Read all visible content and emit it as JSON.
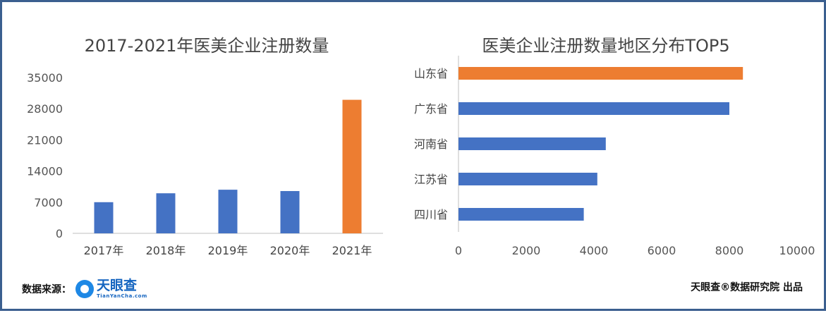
{
  "footer": {
    "source_label": "数据来源：",
    "logo_name": "天眼查",
    "logo_sub": "TianYanCha.com",
    "credit": "天眼查®数据研究院 出品"
  },
  "chart_data": [
    {
      "type": "bar",
      "title": "2017-2021年医美企业注册数量",
      "categories": [
        "2017年",
        "2018年",
        "2019年",
        "2020年",
        "2021年"
      ],
      "values": [
        7000,
        9000,
        9800,
        9500,
        30000
      ],
      "colors": [
        "#4472c4",
        "#4472c4",
        "#4472c4",
        "#4472c4",
        "#ed7d31"
      ],
      "ylim": [
        0,
        35000
      ],
      "yticks": [
        0,
        7000,
        14000,
        21000,
        28000,
        35000
      ],
      "xlabel": "",
      "ylabel": "",
      "grid": false
    },
    {
      "type": "bar",
      "orientation": "horizontal",
      "title": "医美企业注册数量地区分布TOP5",
      "categories": [
        "山东省",
        "广东省",
        "河南省",
        "江苏省",
        "四川省"
      ],
      "values": [
        8400,
        8000,
        4350,
        4100,
        3700
      ],
      "colors": [
        "#ed7d31",
        "#4472c4",
        "#4472c4",
        "#4472c4",
        "#4472c4"
      ],
      "xlim": [
        0,
        10000
      ],
      "xticks": [
        0,
        2000,
        4000,
        6000,
        8000,
        10000
      ],
      "xlabel": "",
      "ylabel": "",
      "grid": false
    }
  ]
}
